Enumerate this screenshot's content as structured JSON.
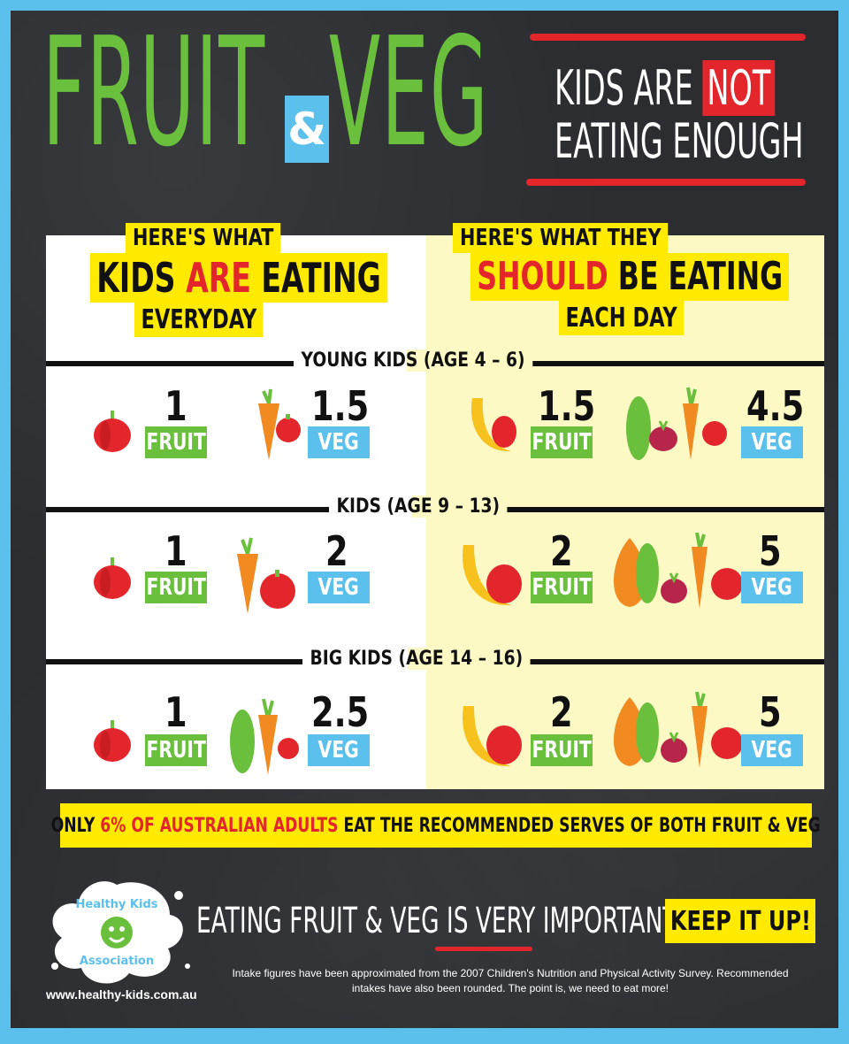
{
  "header": {
    "title_left": "FRUIT",
    "ampersand": "&",
    "title_right": "VEG",
    "headline_pre": "KIDS ARE ",
    "headline_not": "NOT",
    "headline_line2": "EATING ENOUGH"
  },
  "columns": {
    "left": {
      "line1": "HERE'S WHAT",
      "line2_a": "KIDS ",
      "line2_b": "ARE",
      "line2_c": " EATING",
      "line3": "EVERYDAY"
    },
    "right": {
      "line1": "HERE'S WHAT THEY",
      "line2_a": "SHOULD",
      "line2_b": " BE EATING",
      "line3": "EACH DAY"
    }
  },
  "labels": {
    "fruit": "FRUIT",
    "veg": "VEG"
  },
  "groups": [
    {
      "label": "YOUNG KIDS  (AGE 4 – 6)",
      "actual": {
        "fruit": "1",
        "veg": "1.5"
      },
      "recommended": {
        "fruit": "1.5",
        "veg": "4.5"
      }
    },
    {
      "label": "KIDS  (AGE 9 – 13)",
      "actual": {
        "fruit": "1",
        "veg": "2"
      },
      "recommended": {
        "fruit": "2",
        "veg": "5"
      }
    },
    {
      "label": "BIG KIDS  (AGE 14 – 16)",
      "actual": {
        "fruit": "1",
        "veg": "2.5"
      },
      "recommended": {
        "fruit": "2",
        "veg": "5"
      }
    }
  ],
  "banner": {
    "pre": "ONLY ",
    "highlight": "6% OF AUSTRALIAN ADULTS",
    "post": " EAT THE RECOMMENDED SERVES OF BOTH FRUIT & VEG"
  },
  "footer": {
    "org_line1": "Healthy Kids",
    "org_line2": "Association",
    "url": "www.healthy-kids.com.au",
    "important": "EATING FRUIT & VEG IS VERY IMPORTANT!",
    "keep_it_up": "KEEP IT UP!",
    "footnote": "Intake figures have been approximated from the 2007 Children's Nutrition and Physical Activity Survey. Recommended intakes have also been rounded. The point is, we need to eat more!"
  },
  "colors": {
    "green": "#6abf3d",
    "blue": "#5bc0eb",
    "red": "#e3262b",
    "yellow": "#ffea00",
    "board": "#2b2d30"
  }
}
